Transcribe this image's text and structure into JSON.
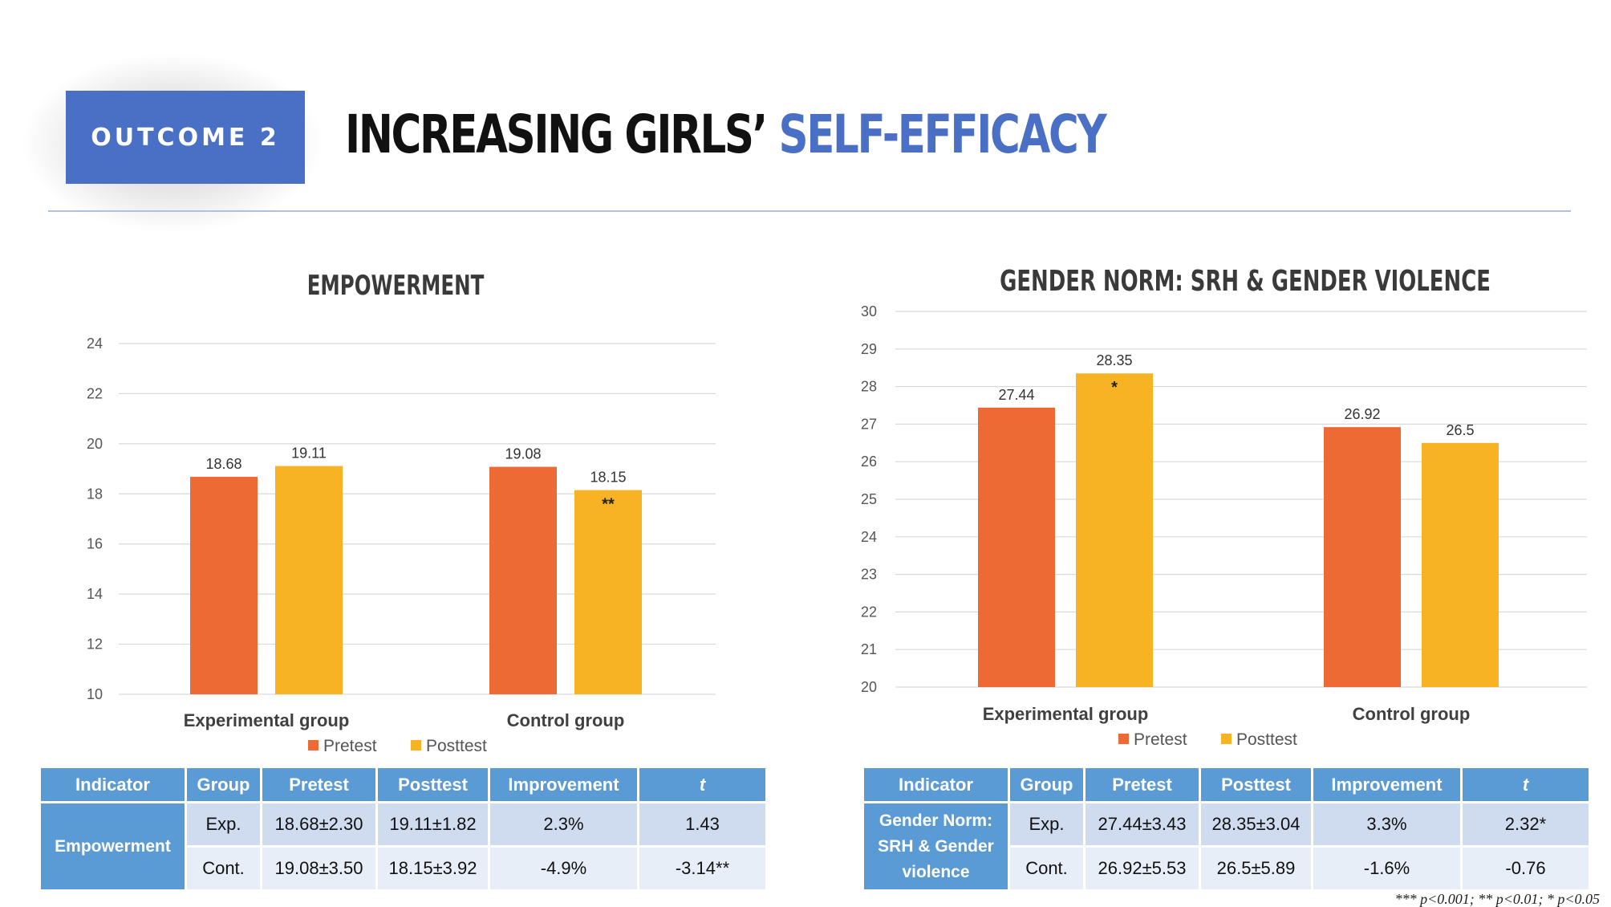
{
  "header": {
    "badge": "OUTCOME 2",
    "title_part1": "INCREASING GIRLS’ ",
    "title_part2": "SELF-EFFICACY",
    "accent_color": "#4a70c6"
  },
  "chart_data": [
    {
      "type": "bar",
      "title": "EMPOWERMENT",
      "categories": [
        "Experimental group",
        "Control group"
      ],
      "series": [
        {
          "name": "Pretest",
          "color": "#ed6a35",
          "values": [
            18.68,
            19.08
          ],
          "labels": [
            "18.68",
            "19.08"
          ]
        },
        {
          "name": "Posttest",
          "color": "#f8b324",
          "values": [
            19.11,
            18.15
          ],
          "labels": [
            "19.11",
            "18.15"
          ]
        }
      ],
      "annotations": [
        {
          "category": 1,
          "series": 1,
          "text": "**"
        }
      ],
      "ylim": [
        10,
        24
      ],
      "yticks": [
        10,
        12,
        14,
        16,
        18,
        20,
        22,
        24
      ],
      "grid": true,
      "legend": "bottom"
    },
    {
      "type": "bar",
      "title": "GENDER NORM: SRH & GENDER VIOLENCE",
      "categories": [
        "Experimental group",
        "Control group"
      ],
      "series": [
        {
          "name": "Pretest",
          "color": "#ed6a35",
          "values": [
            27.44,
            26.92
          ],
          "labels": [
            "27.44",
            "26.92"
          ]
        },
        {
          "name": "Posttest",
          "color": "#f8b324",
          "values": [
            28.35,
            26.5
          ],
          "labels": [
            "28.35",
            "26.5"
          ]
        }
      ],
      "annotations": [
        {
          "category": 0,
          "series": 1,
          "text": "*"
        }
      ],
      "ylim": [
        20,
        30
      ],
      "yticks": [
        20,
        21,
        22,
        23,
        24,
        25,
        26,
        27,
        28,
        29,
        30
      ],
      "grid": true,
      "legend": "bottom"
    }
  ],
  "tables": [
    {
      "headers": [
        "Indicator",
        "Group",
        "Pretest",
        "Posttest",
        "Improvement",
        "t"
      ],
      "indicator": "Empowerment",
      "rows": [
        [
          "Exp.",
          "18.68±2.30",
          "19.11±1.82",
          "2.3%",
          "1.43"
        ],
        [
          "Cont.",
          "19.08±3.50",
          "18.15±3.92",
          "-4.9%",
          "-3.14**"
        ]
      ]
    },
    {
      "headers": [
        "Indicator",
        "Group",
        "Pretest",
        "Posttest",
        "Improvement",
        "t"
      ],
      "indicator_lines": [
        "Gender Norm:",
        "SRH & Gender",
        "violence"
      ],
      "rows": [
        [
          "Exp.",
          "27.44±3.43",
          "28.35±3.04",
          "3.3%",
          "2.32*"
        ],
        [
          "Cont.",
          "26.92±5.53",
          "26.5±5.89",
          "-1.6%",
          "-0.76"
        ]
      ]
    }
  ],
  "footnote": "*** p<0.001; ** p<0.01; * p<0.05"
}
